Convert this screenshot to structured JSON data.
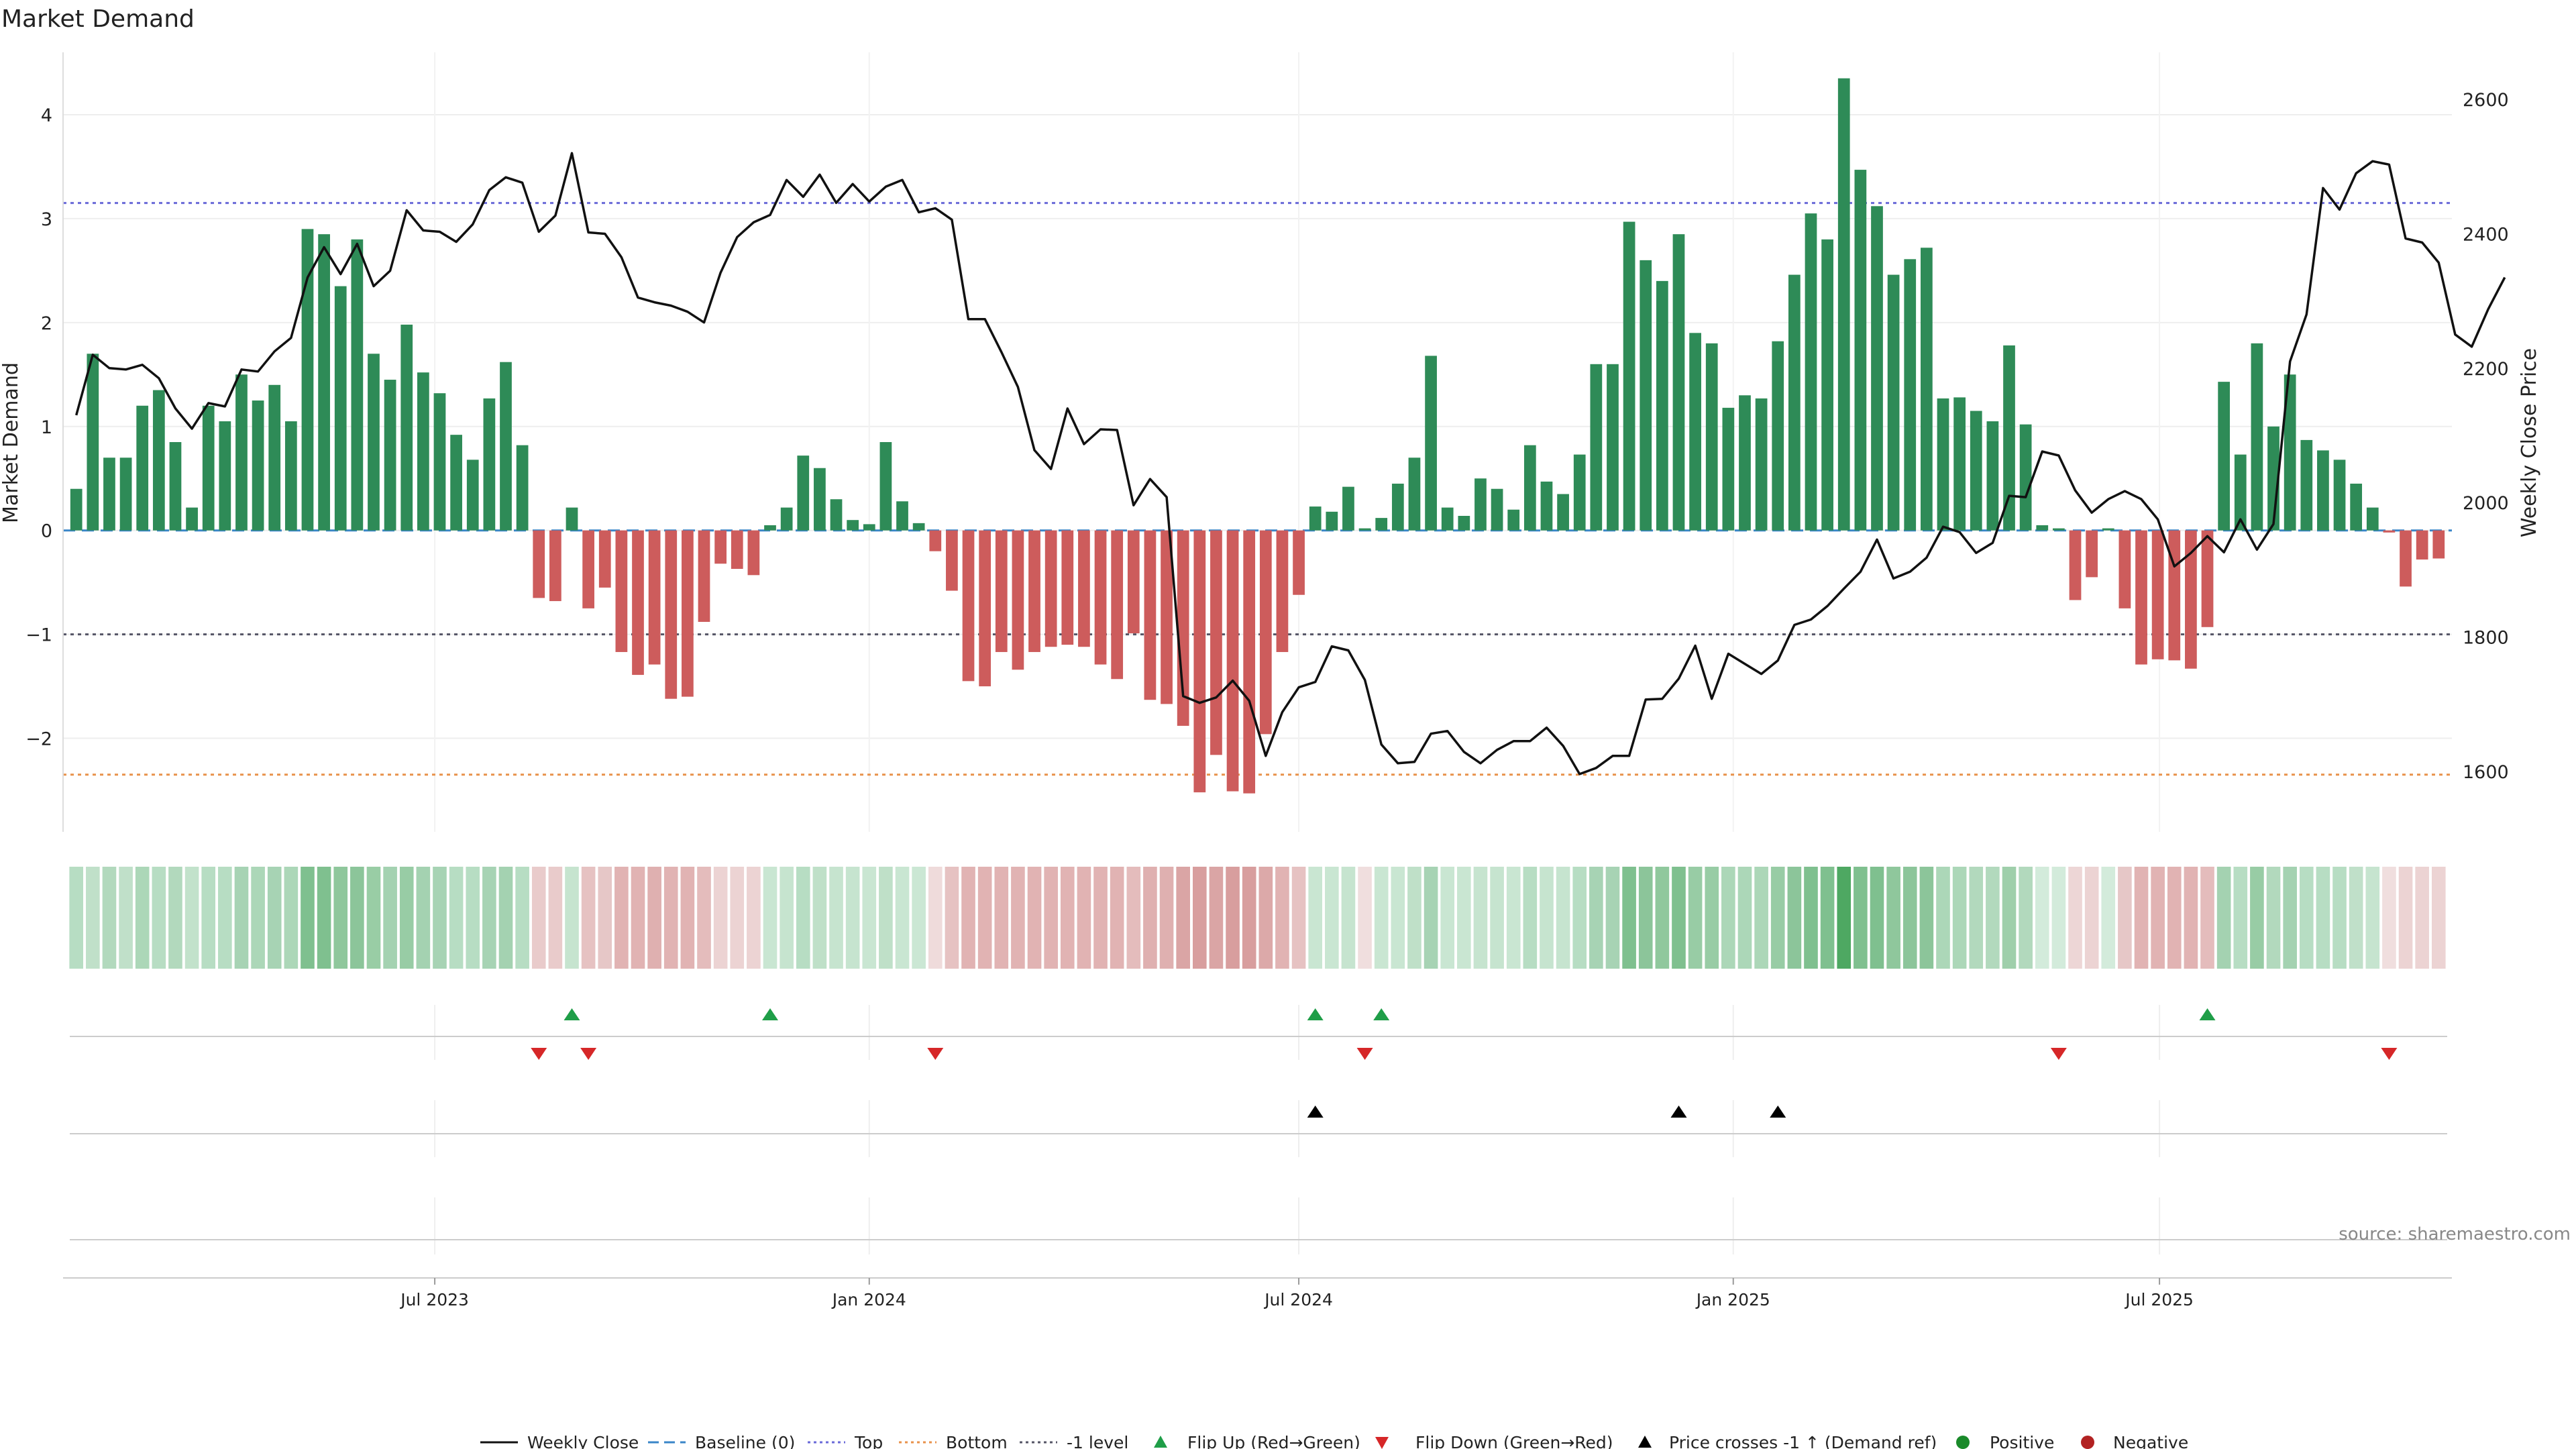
{
  "chart_data": {
    "type": "bar",
    "title": "Market Demand",
    "ylabel": "Market Demand",
    "y2label": "Weekly Close Price",
    "ylim": [
      -2.9,
      4.6
    ],
    "y2lim": [
      1510,
      2670
    ],
    "yticks": [
      4,
      3,
      2,
      1,
      0,
      -1,
      -2
    ],
    "yticks_labels": [
      "4",
      "3",
      "2",
      "1",
      "0",
      "−1",
      "−2"
    ],
    "y2ticks": [
      2600,
      2400,
      2200,
      2000,
      1800,
      1600
    ],
    "y2ticks_labels": [
      "2600",
      "2400",
      "2200",
      "2000",
      "1800",
      "1600"
    ],
    "x_index_range": [
      -0.8,
      143.8
    ],
    "xticks": [
      {
        "index": 21.7,
        "label": "Jul 2023"
      },
      {
        "index": 48.0,
        "label": "Jan 2024"
      },
      {
        "index": 74.0,
        "label": "Jul 2024"
      },
      {
        "index": 100.3,
        "label": "Jan 2025"
      },
      {
        "index": 126.1,
        "label": "Jul 2025"
      }
    ],
    "reference_lines": {
      "top": 3.15,
      "bottom": -2.35,
      "minus_one_level": -1,
      "baseline": 0
    },
    "colors": {
      "positive": "#2e8b57",
      "negative": "#cd5c5c",
      "price": "#111111",
      "top": "#6a6ad8",
      "bottom": "#e8924b",
      "minus_one": "#555566",
      "baseline": "#3a86c8",
      "flip_up": "#1f9e48",
      "flip_down": "#d62728",
      "cross": "#000000",
      "pos_dot": "#1a8a2a",
      "neg_dot": "#b22222"
    },
    "demand": [
      0.4,
      1.7,
      0.7,
      0.7,
      1.2,
      1.35,
      0.85,
      0.22,
      1.2,
      1.05,
      1.5,
      1.25,
      1.4,
      1.05,
      2.9,
      2.85,
      2.35,
      2.8,
      1.7,
      1.45,
      1.98,
      1.52,
      1.32,
      0.92,
      0.68,
      1.27,
      1.62,
      0.82,
      -0.65,
      -0.68,
      0.22,
      -0.75,
      -0.55,
      -1.17,
      -1.39,
      -1.29,
      -1.62,
      -1.6,
      -0.88,
      -0.32,
      -0.37,
      -0.43,
      0.05,
      0.22,
      0.72,
      0.6,
      0.3,
      0.1,
      0.06,
      0.85,
      0.28,
      0.07,
      -0.2,
      -0.58,
      -1.45,
      -1.5,
      -1.17,
      -1.34,
      -1.17,
      -1.12,
      -1.1,
      -1.12,
      -1.29,
      -1.43,
      -0.99,
      -1.63,
      -1.67,
      -1.88,
      -2.52,
      -2.16,
      -2.51,
      -2.53,
      -1.96,
      -1.17,
      -0.62,
      0.23,
      0.18,
      0.42,
      0.02,
      0.12,
      0.45,
      0.7,
      1.68,
      0.22,
      0.14,
      0.5,
      0.4,
      0.2,
      0.82,
      0.47,
      0.35,
      0.73,
      1.6,
      1.6,
      2.97,
      2.6,
      2.4,
      2.85,
      1.9,
      1.8,
      1.18,
      1.3,
      1.27,
      1.82,
      2.46,
      3.05,
      2.8,
      4.35,
      3.47,
      3.12,
      2.46,
      2.61,
      2.72,
      1.27,
      1.28,
      1.15,
      1.05,
      1.78,
      1.02,
      0.05,
      0.02,
      -0.67,
      -0.45,
      0.02,
      -0.75,
      -1.29,
      -1.24,
      -1.25,
      -1.33,
      -0.93,
      1.43,
      0.73,
      1.8,
      1.0,
      1.5,
      0.87,
      0.77,
      0.68,
      0.45,
      0.22,
      -0.02,
      -0.54,
      -0.28,
      -0.27
    ],
    "price": [
      2130,
      2220,
      2200,
      2198,
      2205,
      2185,
      2140,
      2110,
      2148,
      2143,
      2198,
      2195,
      2225,
      2245,
      2335,
      2380,
      2340,
      2385,
      2322,
      2345,
      2435,
      2405,
      2403,
      2388,
      2414,
      2465,
      2484,
      2476,
      2403,
      2427,
      2520,
      2402,
      2400,
      2365,
      2305,
      2298,
      2293,
      2284,
      2268,
      2342,
      2395,
      2417,
      2428,
      2480,
      2455,
      2488,
      2446,
      2474,
      2448,
      2470,
      2480,
      2432,
      2438,
      2421,
      2273,
      2273,
      2224,
      2172,
      2078,
      2050,
      2140,
      2087,
      2109,
      2108,
      1996,
      2035,
      2008,
      1712,
      1702,
      1710,
      1735,
      1705,
      1623,
      1688,
      1725,
      1733,
      1786,
      1780,
      1736,
      1640,
      1612,
      1614,
      1656,
      1660,
      1629,
      1612,
      1632,
      1645,
      1645,
      1665,
      1638,
      1596,
      1605,
      1623,
      1623,
      1707,
      1708,
      1738,
      1787,
      1708,
      1775,
      1760,
      1745,
      1765,
      1818,
      1826,
      1846,
      1872,
      1897,
      1945,
      1887,
      1897,
      1918,
      1964,
      1956,
      1925,
      1940,
      2010,
      2008,
      2076,
      2070,
      2018,
      1985,
      2005,
      2017,
      2005,
      1975,
      1905,
      1925,
      1950,
      1926,
      1975,
      1930,
      1968,
      2210,
      2280,
      2468,
      2436,
      2490,
      2508,
      2503,
      2393,
      2387,
      2357,
      2250,
      2232,
      2288,
      2335
    ],
    "heat_colors": [
      "#b7ddc3",
      "#c0e0c9",
      "#b2d9bd",
      "#c0e0c9",
      "#acd7b8",
      "#b7ddc3",
      "#b2d9bd",
      "#c2e2cb",
      "#b7ddc3",
      "#b7ddc3",
      "#a7d3b4",
      "#acd7b8",
      "#a7d3b4",
      "#acd7b8",
      "#7fc08f",
      "#7fc08f",
      "#8fc79c",
      "#8cc59a",
      "#99cda5",
      "#a4d2b1",
      "#98cca5",
      "#a4d2b1",
      "#a7d3b4",
      "#b7ddc3",
      "#b7ddc3",
      "#a7d3b4",
      "#a4d2b1",
      "#b7ddc3",
      "#e9cbcb",
      "#e9cbcb",
      "#c6e4cf",
      "#e6c2c2",
      "#e6c7c7",
      "#e1b3b3",
      "#e1b3b3",
      "#dfb0b0",
      "#e1b3b3",
      "#e1b3b3",
      "#e4bcbc",
      "#ecd3d3",
      "#ecd3d3",
      "#ecd3d3",
      "#c9e6d2",
      "#c6e4cf",
      "#b7ddc3",
      "#bfe0c8",
      "#c6e4cf",
      "#c6e4cf",
      "#c9e6d2",
      "#bfe0c8",
      "#c9e6d2",
      "#cbe7d4",
      "#efdbdb",
      "#e6c2c2",
      "#e1b3b3",
      "#e1b3b3",
      "#e1b3b3",
      "#e1b3b3",
      "#e1b3b3",
      "#e1b3b3",
      "#e1b3b3",
      "#e1b3b3",
      "#e1b3b3",
      "#e1b3b3",
      "#e4bcbc",
      "#dfb0b0",
      "#dfb0b0",
      "#daa5a5",
      "#d89e9e",
      "#daa5a5",
      "#d89e9e",
      "#d89e9e",
      "#dca9a9",
      "#e1b3b3",
      "#e6c2c2",
      "#c9e6d2",
      "#c9e6d2",
      "#c6e4cf",
      "#f0dede",
      "#c9e6d2",
      "#c9e6d2",
      "#bfe0c8",
      "#a7d3b4",
      "#c9e6d2",
      "#c9e6d2",
      "#c6e4cf",
      "#c6e4cf",
      "#c9e6d2",
      "#b7ddc3",
      "#c6e4cf",
      "#c6e4cf",
      "#b7ddc3",
      "#a7d3b4",
      "#a7d3b4",
      "#7fc08f",
      "#8cc59a",
      "#90c89d",
      "#7fc08f",
      "#98cca5",
      "#98cca5",
      "#acd7b8",
      "#acd7b8",
      "#acd7b8",
      "#98cca5",
      "#8cc59a",
      "#7fc08f",
      "#7fc08f",
      "#4ea862",
      "#7fc08f",
      "#7fc08f",
      "#8fc79c",
      "#8cc59a",
      "#8cc59a",
      "#acd7b8",
      "#acd7b8",
      "#b2d9bd",
      "#b2d9bd",
      "#9fcfab",
      "#b2d9bd",
      "#d3ebdb",
      "#d3ebdb",
      "#edd6d6",
      "#ecd3d3",
      "#d3ebdb",
      "#e6c7c7",
      "#e1b3b3",
      "#e1b3b3",
      "#e1b3b3",
      "#e1b3b3",
      "#e4bcbc",
      "#a4d2b1",
      "#b7ddc3",
      "#98cca5",
      "#b2d9bd",
      "#a4d2b1",
      "#b7ddc3",
      "#b7ddc3",
      "#b7ddc3",
      "#c0e0c9",
      "#c6e4cf",
      "#f0dede",
      "#ecd3d3",
      "#ecd3d3",
      "#ecd3d3"
    ],
    "flip_up_indices": [
      30,
      42,
      75,
      79,
      129
    ],
    "flip_down_indices": [
      28,
      31,
      52,
      78,
      120,
      140
    ],
    "price_cross_indices": [
      75,
      97,
      103
    ],
    "legend": {
      "weekly_close": "Weekly Close",
      "baseline": "Baseline (0)",
      "top": "Top",
      "bottom": "Bottom",
      "minus_one": "-1 level",
      "flip_up": "Flip Up (Red→Green)",
      "flip_down": "Flip Down (Green→Red)",
      "price_cross": "Price crosses -1 ↑ (Demand ref)",
      "positive": "Positive",
      "negative": "Negative"
    },
    "source": "source: sharemaestro.com"
  }
}
